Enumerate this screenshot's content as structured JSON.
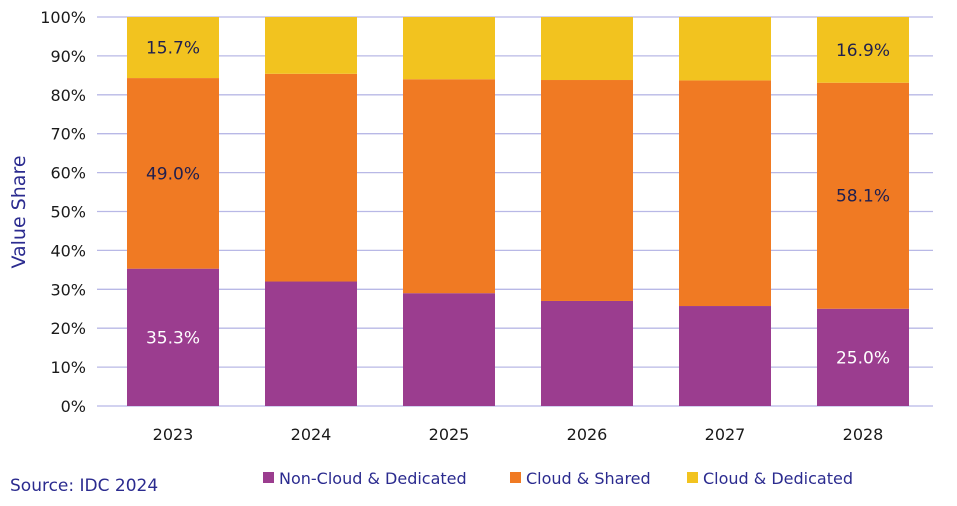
{
  "source": "Source: IDC 2024",
  "chart_data": {
    "type": "bar",
    "stacked": true,
    "title": "",
    "xlabel": "",
    "ylabel": "Value Share",
    "ylim": [
      0,
      100
    ],
    "yticks": [
      "0%",
      "10%",
      "20%",
      "30%",
      "40%",
      "50%",
      "60%",
      "70%",
      "80%",
      "90%",
      "100%"
    ],
    "categories": [
      "2023",
      "2024",
      "2025",
      "2026",
      "2027",
      "2028"
    ],
    "grid": true,
    "legend_position": "bottom",
    "series": [
      {
        "name": "Non-Cloud & Dedicated",
        "color": "#9b3d8f",
        "values": [
          35.3,
          32.0,
          29.0,
          27.0,
          25.7,
          25.0
        ],
        "labels": [
          "35.3%",
          "",
          "",
          "",
          "",
          "25.0%"
        ],
        "label_color": "#ffffff"
      },
      {
        "name": "Cloud & Shared",
        "color": "#f07a23",
        "values": [
          49.0,
          53.4,
          55.0,
          56.8,
          58.0,
          58.1
        ],
        "labels": [
          "49.0%",
          "",
          "",
          "",
          "",
          "58.1%"
        ],
        "label_color": "#1f1f4f"
      },
      {
        "name": "Cloud & Dedicated",
        "color": "#f2c31f",
        "values": [
          15.7,
          14.6,
          16.0,
          16.2,
          16.3,
          16.9
        ],
        "labels": [
          "15.7%",
          "",
          "",
          "",
          "",
          "16.9%"
        ],
        "label_color": "#1f1f4f"
      }
    ]
  }
}
